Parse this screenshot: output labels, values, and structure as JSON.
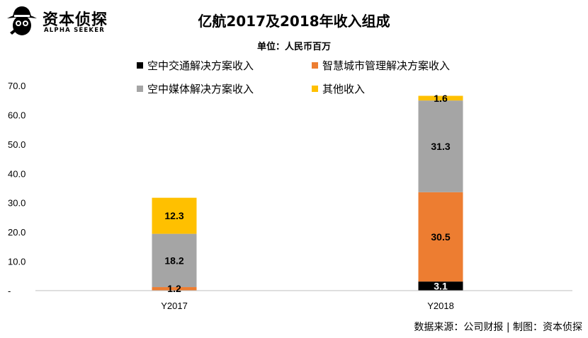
{
  "brand": {
    "name_cn": "资本侦探",
    "name_en": "ALPHA SEEKER",
    "icon": "detective-hat-icon"
  },
  "source_note": "数据来源：公司财报 | 制图：资本侦探",
  "colors": {
    "air_traffic": "#000000",
    "smart_city": "#ED7D31",
    "air_media": "#A5A5A5",
    "other": "#FFC000"
  },
  "chart_data": {
    "type": "bar",
    "stacked": true,
    "title": "亿航2017及2018年收入组成",
    "subtitle": "单位：人民币百万",
    "categories": [
      "Y2017",
      "Y2018"
    ],
    "series": [
      {
        "name": "空中交通解决方案收入",
        "key": "air_traffic",
        "values": [
          0,
          3.1
        ],
        "labels": [
          "",
          "3.1"
        ]
      },
      {
        "name": "智慧城市管理解决方案收入",
        "key": "smart_city",
        "values": [
          1.2,
          30.5
        ],
        "labels": [
          "1.2",
          "30.5"
        ]
      },
      {
        "name": "空中媒体解决方案收入",
        "key": "air_media",
        "values": [
          18.2,
          31.3
        ],
        "labels": [
          "18.2",
          "31.3"
        ]
      },
      {
        "name": "其他收入",
        "key": "other",
        "values": [
          12.3,
          1.6
        ],
        "labels": [
          "12.3",
          "1.6"
        ]
      }
    ],
    "y_ticks": [
      "-",
      "10.0",
      "20.0",
      "30.0",
      "40.0",
      "50.0",
      "60.0",
      "70.0"
    ],
    "ylim": [
      0,
      70
    ],
    "legend": "top",
    "grid": false
  }
}
